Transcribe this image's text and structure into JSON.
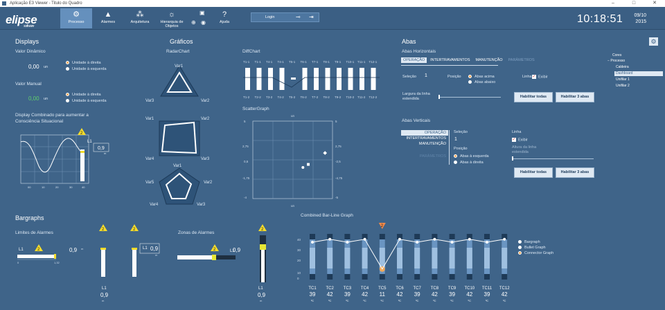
{
  "window": {
    "title": "Aplicação E3 Viewer - Titulo do Quadro",
    "minimize": "–",
    "maximize": "□",
    "close": "✕"
  },
  "logo": {
    "name": "elipse",
    "sub": "software"
  },
  "nav": [
    {
      "label": "Processo",
      "icon": "gear-icon",
      "glyph": "⚙"
    },
    {
      "label": "Alarmes",
      "icon": "bell-icon",
      "glyph": "🔔"
    },
    {
      "label": "Arquitetura",
      "icon": "network-icon",
      "glyph": "⎈"
    },
    {
      "label": "Hierarquia de Objetos",
      "icon": "hierarchy-icon",
      "glyph": "⋔"
    },
    {
      "label": "Ajuda",
      "icon": "help-icon",
      "glyph": "?"
    }
  ],
  "login": {
    "label": "Login"
  },
  "clock": {
    "time": "10:18:51",
    "date": "09/10",
    "year": "2015"
  },
  "displays": {
    "title": "Displays",
    "dynamic_label": "Valor Dinâmico",
    "dynamic_value": "0,00",
    "dynamic_unit": "un",
    "manual_label": "Valor Manual",
    "manual_value": "0,00",
    "manual_unit": "un",
    "unit_right": "Unidade à direita",
    "unit_left": "Unidade à esquerda",
    "combined_label": "Display Combinado para aumentar a Consciência Situacional",
    "combined_tag": "L1",
    "combined_value": "0,9",
    "combined_unit": "m",
    "alarm_level": "2",
    "axis": [
      "00",
      "10",
      "20",
      "30",
      "40"
    ]
  },
  "graficos": {
    "title": "Gráficos",
    "radar_title": "RadarChart",
    "radar1": [
      "Var1",
      "Var2",
      "Var3"
    ],
    "radar2": [
      "Var1",
      "Var2",
      "Var3",
      "Var4"
    ],
    "radar3": [
      "Var1",
      "Var2",
      "Var3",
      "Var4",
      "Var5"
    ]
  },
  "diff": {
    "title": "DiffChart",
    "top": [
      "T1-1",
      "T1-1",
      "T4-1",
      "T4-1",
      "T5-1",
      "T6-1",
      "T7-1",
      "T8-1",
      "T9-1",
      "T10-1",
      "T11-1",
      "T12-1"
    ],
    "bottom": [
      "T1-2",
      "T2-2",
      "T3-2",
      "T4-2",
      "T5-2",
      "T6-2",
      "T7-2",
      "T8-2",
      "T9-2",
      "T10-2",
      "T11-2",
      "T12-2"
    ]
  },
  "scatter": {
    "title": "ScatterGraph",
    "y_ticks": [
      "5",
      "2,75",
      "0,5",
      "-1,75",
      "-4"
    ],
    "y_ticks_right": [
      "5",
      "2,75",
      "-2,5",
      "-4,75",
      "-5"
    ],
    "axis_unit": "un",
    "points": [
      [
        1.3,
        -1.0
      ],
      [
        2.0,
        -0.6
      ],
      [
        4.2,
        0.9
      ]
    ]
  },
  "abas": {
    "title": "Abas",
    "h_title": "Abas Horizontais",
    "tabs": [
      "OPERAÇÃO",
      "INTERTRAVAMENTOS",
      "MANUTENÇÃO",
      "PARÂMETROS"
    ],
    "selecao": "Seleção",
    "selecao_value": "1",
    "posicao": "Posição",
    "pos_top": "Abas acima",
    "pos_bottom": "Abas abaixo",
    "linha": "Linha",
    "exibir": "Exibir",
    "largura": "Largura da linha estendida",
    "enable_all": "Habilitar todas",
    "enable_3": "Habilitar 3 abas",
    "v_title": "Abas Verticais",
    "pos_left": "Abas à esquerda",
    "pos_right": "Abas à direita",
    "altura": "Altura da linha estendida"
  },
  "tree": {
    "items": [
      "Cores",
      "Processo",
      "Caldeira",
      "Dashboard",
      "Unifilar 1",
      "Unifilar 2"
    ]
  },
  "bargraphs": {
    "title": "Bargraphs",
    "limits_label": "Limites de Alarmes",
    "zones_label": "Zonas de Alarmes",
    "tag": "L1",
    "value": "0,9",
    "unit": "m",
    "alarm": "2",
    "min": "0",
    "max": "1,32"
  },
  "combined": {
    "title": "Combined Bar-Line Graph",
    "legend": [
      "Bargraph",
      "Bullet Graph",
      "Connector Graph"
    ],
    "y_ticks": [
      "40",
      "30",
      "20",
      "10",
      "0"
    ],
    "unit": "ºC"
  },
  "chart_data": {
    "type": "bar",
    "title": "Combined Bar-Line Graph",
    "categories": [
      "TC1",
      "TC2",
      "TC3",
      "TC4",
      "TC5",
      "TC6",
      "TC7",
      "TC8",
      "TC9",
      "TC10",
      "TC11",
      "TC12"
    ],
    "series": [
      {
        "name": "Bargraph",
        "values": [
          39,
          42,
          39,
          42,
          11,
          42,
          39,
          42,
          39,
          42,
          39,
          42
        ]
      }
    ],
    "unit": "ºC",
    "ylim": [
      0,
      50
    ]
  }
}
